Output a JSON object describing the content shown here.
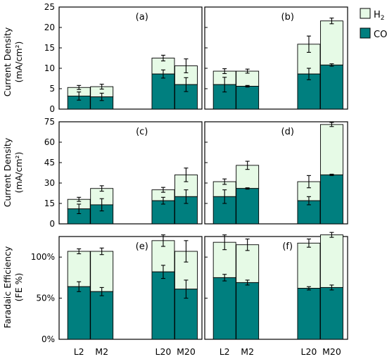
{
  "legend": {
    "placement": "top-right",
    "items": [
      {
        "label": "H",
        "sub": "2",
        "color": "#e6fae6"
      },
      {
        "label": "CO",
        "sub": "",
        "color": "#007f7f"
      }
    ]
  },
  "x_categories": [
    "L2",
    "M2",
    "L20",
    "M20"
  ],
  "row_labels": [
    {
      "line1": "Current Density",
      "line2": "(mA/cm²)"
    },
    {
      "line1": "Current Density",
      "line2": "(mA/cm²)"
    },
    {
      "line1": "Faradaic Efficiency",
      "line2": "(FE %)"
    }
  ],
  "chart_data": [
    {
      "type": "bar",
      "stacked": true,
      "panel": "(a)",
      "categories": [
        "L2",
        "M2",
        "L20",
        "M20"
      ],
      "series": [
        {
          "name": "CO",
          "values": [
            3.2,
            3.0,
            8.6,
            6.0
          ],
          "err": [
            1.0,
            0.9,
            1.0,
            1.7
          ]
        },
        {
          "name": "H2",
          "values": [
            2.1,
            2.5,
            3.9,
            4.6
          ],
          "err": [
            0.5,
            0.6,
            0.7,
            1.7
          ],
          "total_labels_": null
        }
      ],
      "ylim": [
        0,
        25
      ],
      "yticks": [
        0,
        5,
        10,
        15,
        20,
        25
      ],
      "show_yticks": true
    },
    {
      "type": "bar",
      "stacked": true,
      "panel": "(b)",
      "categories": [
        "L2",
        "M2",
        "L20",
        "M20"
      ],
      "series": [
        {
          "name": "CO",
          "values": [
            6.0,
            5.6,
            8.6,
            10.8
          ],
          "err": [
            1.8,
            0.2,
            1.4,
            0.3
          ]
        },
        {
          "name": "H2",
          "values": [
            3.3,
            3.7,
            7.3,
            10.8
          ],
          "err": [
            0.6,
            0.5,
            2.0,
            0.7
          ]
        }
      ],
      "ylim": [
        0,
        25
      ],
      "yticks": [
        0,
        5,
        10,
        15,
        20,
        25
      ],
      "show_yticks": false
    },
    {
      "type": "bar",
      "stacked": true,
      "panel": "(c)",
      "categories": [
        "L2",
        "M2",
        "L20",
        "M20"
      ],
      "series": [
        {
          "name": "CO",
          "values": [
            11,
            14,
            17,
            20
          ],
          "err": [
            3.5,
            4.5,
            2.5,
            5.0
          ]
        },
        {
          "name": "H2",
          "values": [
            7,
            12,
            8,
            16
          ],
          "err": [
            1.5,
            2.0,
            1.8,
            5.0
          ]
        }
      ],
      "ylim": [
        0,
        75
      ],
      "yticks": [
        0,
        15,
        30,
        45,
        60,
        75
      ],
      "show_yticks": true
    },
    {
      "type": "bar",
      "stacked": true,
      "panel": "(d)",
      "categories": [
        "L2",
        "M2",
        "L20",
        "M20"
      ],
      "series": [
        {
          "name": "CO",
          "values": [
            20,
            26,
            17,
            36
          ],
          "err": [
            5.0,
            0.5,
            3.0,
            0.5
          ]
        },
        {
          "name": "H2",
          "values": [
            11,
            17,
            14,
            37
          ],
          "err": [
            2.0,
            3.0,
            4.5,
            1.5
          ]
        }
      ],
      "ylim": [
        0,
        75
      ],
      "yticks": [
        0,
        15,
        30,
        45,
        60,
        75
      ],
      "show_yticks": false
    },
    {
      "type": "bar",
      "stacked": true,
      "panel": "(e)",
      "categories": [
        "L2",
        "M2",
        "L20",
        "M20"
      ],
      "series": [
        {
          "name": "CO",
          "values": [
            64,
            58,
            82,
            61
          ],
          "err": [
            6,
            5,
            8,
            11
          ]
        },
        {
          "name": "H2",
          "values": [
            43,
            49,
            38,
            46
          ],
          "err": [
            3,
            4,
            7,
            13
          ]
        }
      ],
      "ylim": [
        0,
        125
      ],
      "yticks": [
        0,
        50,
        100
      ],
      "yticklabels": [
        "0%",
        "50%",
        "100%"
      ],
      "show_yticks": true
    },
    {
      "type": "bar",
      "stacked": true,
      "panel": "(f)",
      "categories": [
        "L2",
        "M2",
        "L20",
        "M20"
      ],
      "series": [
        {
          "name": "CO",
          "values": [
            75,
            69,
            62,
            63
          ],
          "err": [
            4,
            3,
            2,
            3
          ]
        },
        {
          "name": "H2",
          "values": [
            43,
            46,
            55,
            64
          ],
          "err": [
            9,
            7,
            5,
            3
          ]
        }
      ],
      "ylim": [
        0,
        125
      ],
      "yticks": [
        0,
        50,
        100
      ],
      "yticklabels": [
        "0%",
        "50%",
        "100%"
      ],
      "show_yticks": false
    }
  ]
}
